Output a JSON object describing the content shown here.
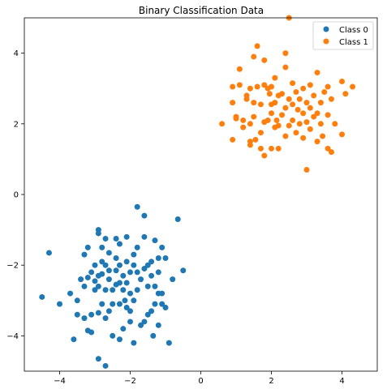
{
  "chart_data": {
    "type": "scatter",
    "title": "Binary Classification Data",
    "xlabel": "",
    "ylabel": "",
    "xlim": [
      -5,
      5
    ],
    "ylim": [
      -5,
      5
    ],
    "xticks": [
      -4,
      -2,
      0,
      2,
      4
    ],
    "yticks": [
      -4,
      -2,
      0,
      2,
      4
    ],
    "grid": false,
    "legend_position": "top-right",
    "series": [
      {
        "name": "Class 0",
        "color": "#1f77b4",
        "points": [
          [
            -4.5,
            -2.9
          ],
          [
            -4.3,
            -1.65
          ],
          [
            -4.0,
            -3.1
          ],
          [
            -3.7,
            -2.8
          ],
          [
            -3.6,
            -4.1
          ],
          [
            -3.5,
            -3.0
          ],
          [
            -3.5,
            -3.4
          ],
          [
            -3.4,
            -2.4
          ],
          [
            -3.3,
            -1.7
          ],
          [
            -3.3,
            -2.6
          ],
          [
            -3.3,
            -3.5
          ],
          [
            -3.2,
            -1.5
          ],
          [
            -3.2,
            -2.35
          ],
          [
            -3.2,
            -3.85
          ],
          [
            -3.1,
            -2.2
          ],
          [
            -3.1,
            -3.4
          ],
          [
            -3.1,
            -3.9
          ],
          [
            -3.0,
            -2.0
          ],
          [
            -3.0,
            -2.45
          ],
          [
            -3.0,
            -2.7
          ],
          [
            -2.9,
            -1.0
          ],
          [
            -2.9,
            -1.1
          ],
          [
            -2.9,
            -2.3
          ],
          [
            -2.9,
            -2.6
          ],
          [
            -2.9,
            -3.35
          ],
          [
            -2.9,
            -4.65
          ],
          [
            -2.8,
            -1.5
          ],
          [
            -2.8,
            -1.9
          ],
          [
            -2.8,
            -2.25
          ],
          [
            -2.8,
            -3.1
          ],
          [
            -2.7,
            -1.25
          ],
          [
            -2.7,
            -2.0
          ],
          [
            -2.7,
            -2.7
          ],
          [
            -2.7,
            -3.5
          ],
          [
            -2.7,
            -4.85
          ],
          [
            -2.6,
            -1.65
          ],
          [
            -2.6,
            -2.15
          ],
          [
            -2.6,
            -2.4
          ],
          [
            -2.6,
            -3.3
          ],
          [
            -2.5,
            -2.7
          ],
          [
            -2.5,
            -3.1
          ],
          [
            -2.5,
            -4.0
          ],
          [
            -2.4,
            -1.25
          ],
          [
            -2.4,
            -1.8
          ],
          [
            -2.4,
            -2.15
          ],
          [
            -2.4,
            -2.55
          ],
          [
            -2.3,
            -1.4
          ],
          [
            -2.3,
            -2.0
          ],
          [
            -2.3,
            -2.5
          ],
          [
            -2.3,
            -3.1
          ],
          [
            -2.3,
            -4.1
          ],
          [
            -2.2,
            -2.3
          ],
          [
            -2.2,
            -2.7
          ],
          [
            -2.2,
            -3.8
          ],
          [
            -2.1,
            -1.2
          ],
          [
            -2.1,
            -1.9
          ],
          [
            -2.1,
            -2.5
          ],
          [
            -2.1,
            -3.2
          ],
          [
            -2.0,
            -2.2
          ],
          [
            -2.0,
            -2.8
          ],
          [
            -2.0,
            -3.3
          ],
          [
            -2.0,
            -3.6
          ],
          [
            -1.9,
            -1.7
          ],
          [
            -1.9,
            -2.0
          ],
          [
            -1.9,
            -3.0
          ],
          [
            -1.9,
            -4.2
          ],
          [
            -1.8,
            -0.35
          ],
          [
            -1.8,
            -1.5
          ],
          [
            -1.8,
            -2.2
          ],
          [
            -1.8,
            -2.7
          ],
          [
            -1.7,
            -2.4
          ],
          [
            -1.7,
            -3.7
          ],
          [
            -1.6,
            -0.6
          ],
          [
            -1.6,
            -1.2
          ],
          [
            -1.6,
            -2.1
          ],
          [
            -1.6,
            -3.6
          ],
          [
            -1.5,
            -2.0
          ],
          [
            -1.5,
            -2.6
          ],
          [
            -1.5,
            -3.4
          ],
          [
            -1.4,
            -1.9
          ],
          [
            -1.4,
            -2.3
          ],
          [
            -1.4,
            -3.3
          ],
          [
            -1.3,
            -1.3
          ],
          [
            -1.3,
            -2.6
          ],
          [
            -1.3,
            -3.1
          ],
          [
            -1.2,
            -1.8
          ],
          [
            -1.2,
            -2.2
          ],
          [
            -1.2,
            -2.8
          ],
          [
            -1.2,
            -3.7
          ],
          [
            -1.1,
            -1.5
          ],
          [
            -1.1,
            -2.8
          ],
          [
            -1.1,
            -3.1
          ],
          [
            -1.0,
            -1.8
          ],
          [
            -1.0,
            -3.2
          ],
          [
            -0.9,
            -4.2
          ],
          [
            -0.8,
            -2.4
          ],
          [
            -0.65,
            -0.7
          ],
          [
            -0.5,
            -2.15
          ],
          [
            -1.35,
            -4.0
          ],
          [
            -2.15,
            -3.0
          ]
        ]
      },
      {
        "name": "Class 1",
        "color": "#ff7f0e",
        "points": [
          [
            0.6,
            2.0
          ],
          [
            0.9,
            1.55
          ],
          [
            0.9,
            2.6
          ],
          [
            0.9,
            3.05
          ],
          [
            1.0,
            2.15
          ],
          [
            1.0,
            2.2
          ],
          [
            1.1,
            3.1
          ],
          [
            1.1,
            3.55
          ],
          [
            1.2,
            1.9
          ],
          [
            1.2,
            2.1
          ],
          [
            1.3,
            2.8
          ],
          [
            1.3,
            2.7
          ],
          [
            1.4,
            1.4
          ],
          [
            1.4,
            1.5
          ],
          [
            1.4,
            2.0
          ],
          [
            1.4,
            3.0
          ],
          [
            1.5,
            2.2
          ],
          [
            1.5,
            2.6
          ],
          [
            1.5,
            3.9
          ],
          [
            1.6,
            3.05
          ],
          [
            1.6,
            4.2
          ],
          [
            1.7,
            1.3
          ],
          [
            1.7,
            1.75
          ],
          [
            1.7,
            2.55
          ],
          [
            1.8,
            1.1
          ],
          [
            1.8,
            2.05
          ],
          [
            1.8,
            3.1
          ],
          [
            1.8,
            3.8
          ],
          [
            1.9,
            2.1
          ],
          [
            1.9,
            3.0
          ],
          [
            2.0,
            1.3
          ],
          [
            2.0,
            2.3
          ],
          [
            2.0,
            2.55
          ],
          [
            2.0,
            3.05
          ],
          [
            2.1,
            1.9
          ],
          [
            2.1,
            2.6
          ],
          [
            2.1,
            3.3
          ],
          [
            2.2,
            1.3
          ],
          [
            2.2,
            1.95
          ],
          [
            2.2,
            2.8
          ],
          [
            2.3,
            2.25
          ],
          [
            2.3,
            2.85
          ],
          [
            2.4,
            1.65
          ],
          [
            2.4,
            2.45
          ],
          [
            2.4,
            3.6
          ],
          [
            2.4,
            4.0
          ],
          [
            2.5,
            1.95
          ],
          [
            2.5,
            2.7
          ],
          [
            2.5,
            5.0
          ],
          [
            2.6,
            2.1
          ],
          [
            2.6,
            2.55
          ],
          [
            2.6,
            3.15
          ],
          [
            2.7,
            1.75
          ],
          [
            2.7,
            2.9
          ],
          [
            2.8,
            2.0
          ],
          [
            2.8,
            2.7
          ],
          [
            2.9,
            1.6
          ],
          [
            2.9,
            2.3
          ],
          [
            2.9,
            3.0
          ],
          [
            3.0,
            2.05
          ],
          [
            3.0,
            2.6
          ],
          [
            3.0,
            0.7
          ],
          [
            3.1,
            1.85
          ],
          [
            3.1,
            2.45
          ],
          [
            3.1,
            3.1
          ],
          [
            3.2,
            2.2
          ],
          [
            3.2,
            2.8
          ],
          [
            3.3,
            1.5
          ],
          [
            3.3,
            2.3
          ],
          [
            3.3,
            3.45
          ],
          [
            3.4,
            2.0
          ],
          [
            3.4,
            2.6
          ],
          [
            3.5,
            2.9
          ],
          [
            3.6,
            1.3
          ],
          [
            3.6,
            2.25
          ],
          [
            3.6,
            3.05
          ],
          [
            3.7,
            1.2
          ],
          [
            3.7,
            2.7
          ],
          [
            3.8,
            2.0
          ],
          [
            4.0,
            1.7
          ],
          [
            4.0,
            3.2
          ],
          [
            4.1,
            2.85
          ],
          [
            4.3,
            3.05
          ],
          [
            1.55,
            1.55
          ],
          [
            2.15,
            2.1
          ],
          [
            2.75,
            2.4
          ],
          [
            1.95,
            2.85
          ],
          [
            3.45,
            1.65
          ]
        ]
      }
    ]
  }
}
